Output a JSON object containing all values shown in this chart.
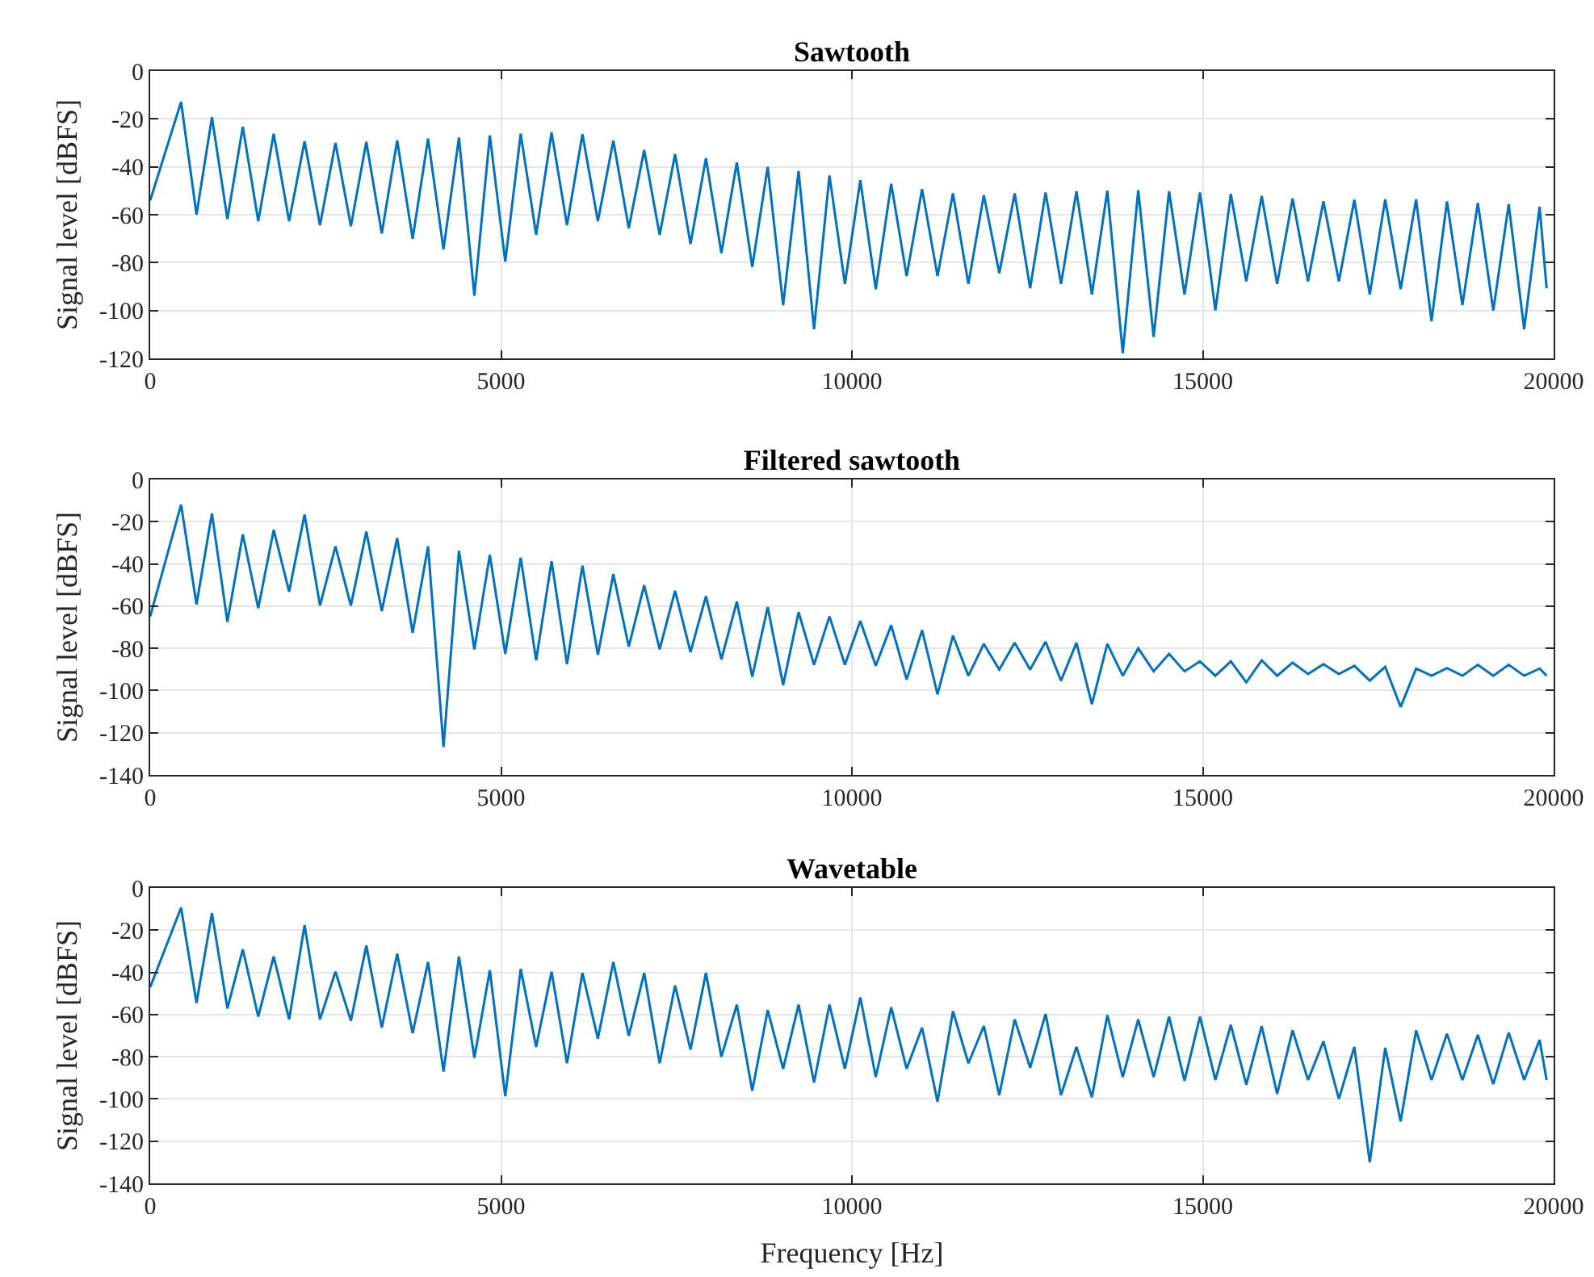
{
  "chart_data": [
    {
      "type": "line",
      "title": "Sawtooth",
      "ylabel": "Signal level [dBFS]",
      "xlim": [
        0,
        20000
      ],
      "xticks": [
        0,
        5000,
        10000,
        15000,
        20000
      ],
      "ylim": [
        -120,
        0
      ],
      "yticks": [
        -120,
        -100,
        -80,
        -60,
        -40,
        -20,
        0
      ],
      "grid": true,
      "x": [
        0,
        440,
        660,
        880,
        1100,
        1320,
        1540,
        1760,
        1980,
        2200,
        2420,
        2640,
        2860,
        3080,
        3300,
        3520,
        3740,
        3960,
        4180,
        4400,
        4620,
        4840,
        5060,
        5280,
        5500,
        5720,
        5940,
        6160,
        6380,
        6600,
        6820,
        7040,
        7260,
        7480,
        7700,
        7920,
        8140,
        8360,
        8580,
        8800,
        9020,
        9240,
        9460,
        9680,
        9900,
        10120,
        10340,
        10560,
        10780,
        11000,
        11220,
        11440,
        11660,
        11880,
        12100,
        12320,
        12540,
        12760,
        12980,
        13200,
        13420,
        13640,
        13860,
        14080,
        14300,
        14520,
        14740,
        14960,
        15180,
        15400,
        15620,
        15840,
        16060,
        16280,
        16500,
        16720,
        16940,
        17160,
        17380,
        17600,
        17820,
        18040,
        18260,
        18480,
        18700,
        18920,
        19140,
        19360,
        19580,
        19800,
        19900
      ],
      "series": [
        {
          "color": "#0072bd",
          "values": [
            -54,
            -12.9,
            -60,
            -19.3,
            -61.8,
            -23.3,
            -62.7,
            -26.2,
            -62.7,
            -29.3,
            -64.4,
            -30,
            -64.8,
            -29.6,
            -67.8,
            -29,
            -70,
            -28.2,
            -74.4,
            -27.8,
            -93.8,
            -26.9,
            -79.6,
            -26.2,
            -68.4,
            -25.6,
            -64.4,
            -26.4,
            -62.7,
            -29.1,
            -65.6,
            -33,
            -68.4,
            -34.7,
            -72.2,
            -36.4,
            -76,
            -38.2,
            -81.8,
            -40,
            -97.8,
            -41.8,
            -107.8,
            -43.6,
            -88.9,
            -45.6,
            -91.1,
            -47.1,
            -85.6,
            -49.3,
            -85.6,
            -51.1,
            -88.9,
            -51.8,
            -84.4,
            -51.1,
            -90.7,
            -50.7,
            -88.9,
            -50.2,
            -93.3,
            -50,
            -117.8,
            -49.8,
            -111,
            -50.2,
            -93.3,
            -50.7,
            -100,
            -51.3,
            -87.8,
            -52.2,
            -88.9,
            -53.3,
            -87.8,
            -54.4,
            -87.8,
            -53.8,
            -93.3,
            -53.6,
            -91.1,
            -53.6,
            -104.4,
            -54.4,
            -97.8,
            -55.1,
            -100,
            -55.6,
            -107.8,
            -56.7,
            -90.7
          ]
        }
      ]
    },
    {
      "type": "line",
      "title": "Filtered sawtooth",
      "ylabel": "Signal level [dBFS]",
      "xlim": [
        0,
        20000
      ],
      "xticks": [
        0,
        5000,
        10000,
        15000,
        20000
      ],
      "ylim": [
        -140,
        0
      ],
      "yticks": [
        -140,
        -120,
        -100,
        -80,
        -60,
        -40,
        -20,
        0
      ],
      "grid": true,
      "x": [
        0,
        440,
        660,
        880,
        1100,
        1320,
        1540,
        1760,
        1980,
        2200,
        2420,
        2640,
        2860,
        3080,
        3300,
        3520,
        3740,
        3960,
        4180,
        4400,
        4620,
        4840,
        5060,
        5280,
        5500,
        5720,
        5940,
        6160,
        6380,
        6600,
        6820,
        7040,
        7260,
        7480,
        7700,
        7920,
        8140,
        8360,
        8580,
        8800,
        9020,
        9240,
        9460,
        9680,
        9900,
        10120,
        10340,
        10560,
        10780,
        11000,
        11220,
        11440,
        11660,
        11880,
        12100,
        12320,
        12540,
        12760,
        12980,
        13200,
        13420,
        13640,
        13860,
        14080,
        14300,
        14520,
        14740,
        14960,
        15180,
        15400,
        15620,
        15840,
        16060,
        16280,
        16500,
        16720,
        16940,
        17160,
        17380,
        17600,
        17820,
        18040,
        18260,
        18480,
        18700,
        18920,
        19140,
        19360,
        19580,
        19800,
        19900
      ],
      "series": [
        {
          "color": "#0072bd",
          "values": [
            -64.9,
            -11.9,
            -59.2,
            -16.1,
            -67.5,
            -26,
            -61,
            -23.9,
            -53.2,
            -16.6,
            -59.7,
            -31.7,
            -59.7,
            -24.7,
            -62.3,
            -27.8,
            -72.7,
            -31.7,
            -126.8,
            -33.8,
            -80.5,
            -35.8,
            -82.6,
            -37.1,
            -85.7,
            -38.7,
            -87.5,
            -40.8,
            -83.1,
            -44.9,
            -79.2,
            -50.1,
            -80.5,
            -52.7,
            -81.8,
            -55.3,
            -85.2,
            -57.9,
            -93.5,
            -60.5,
            -97.4,
            -62.9,
            -87.8,
            -64.9,
            -87.8,
            -67,
            -88.3,
            -69.1,
            -94.8,
            -71.4,
            -101.8,
            -74,
            -93,
            -77.9,
            -90.1,
            -77.4,
            -90.1,
            -76.9,
            -95.3,
            -77.4,
            -106.5,
            -77.9,
            -93,
            -80,
            -90.9,
            -82.6,
            -90.9,
            -86.2,
            -93,
            -86.2,
            -96.1,
            -85.7,
            -93,
            -86.8,
            -92.2,
            -87.5,
            -92.2,
            -88.3,
            -95.3,
            -88.8,
            -107.8,
            -89.6,
            -93,
            -89.4,
            -93,
            -87.8,
            -93,
            -87.8,
            -93,
            -89.6,
            -93
          ]
        }
      ]
    },
    {
      "type": "line",
      "title": "Wavetable",
      "xlabel": "Frequency [Hz]",
      "ylabel": "Signal level [dBFS]",
      "xlim": [
        0,
        20000
      ],
      "xticks": [
        0,
        5000,
        10000,
        15000,
        20000
      ],
      "ylim": [
        -140,
        0
      ],
      "yticks": [
        -140,
        -120,
        -100,
        -80,
        -60,
        -40,
        -20,
        0
      ],
      "grid": true,
      "x": [
        0,
        440,
        660,
        880,
        1100,
        1320,
        1540,
        1760,
        1980,
        2200,
        2420,
        2640,
        2860,
        3080,
        3300,
        3520,
        3740,
        3960,
        4180,
        4400,
        4620,
        4840,
        5060,
        5280,
        5500,
        5720,
        5940,
        6160,
        6380,
        6600,
        6820,
        7040,
        7260,
        7480,
        7700,
        7920,
        8140,
        8360,
        8580,
        8800,
        9020,
        9240,
        9460,
        9680,
        9900,
        10120,
        10340,
        10560,
        10780,
        11000,
        11220,
        11440,
        11660,
        11880,
        12100,
        12320,
        12540,
        12760,
        12980,
        13200,
        13420,
        13640,
        13860,
        14080,
        14300,
        14520,
        14740,
        14960,
        15180,
        15400,
        15620,
        15840,
        16060,
        16280,
        16500,
        16720,
        16940,
        17160,
        17380,
        17600,
        17820,
        18040,
        18260,
        18480,
        18700,
        18920,
        19140,
        19360,
        19580,
        19800,
        19900
      ],
      "series": [
        {
          "color": "#0072bd",
          "values": [
            -47,
            -9.4,
            -54.5,
            -11.9,
            -57.1,
            -29.1,
            -61,
            -32.5,
            -62.3,
            -17.7,
            -62.3,
            -39.7,
            -62.9,
            -27.3,
            -66.2,
            -31.2,
            -68.8,
            -35.1,
            -87,
            -32.5,
            -80.5,
            -39,
            -98.7,
            -38.4,
            -75.3,
            -39.7,
            -83.1,
            -40.3,
            -71.4,
            -35.1,
            -70.1,
            -40.3,
            -83.1,
            -46.2,
            -76.6,
            -40.3,
            -80,
            -55.3,
            -96.1,
            -57.9,
            -85.7,
            -55.3,
            -92.2,
            -55.3,
            -85.7,
            -51.9,
            -89.6,
            -56.6,
            -85.7,
            -66.2,
            -101.3,
            -58.4,
            -83.1,
            -65.4,
            -98.2,
            -62.3,
            -85.2,
            -59.7,
            -98.2,
            -75.3,
            -99.2,
            -60.3,
            -89.6,
            -62.3,
            -89.6,
            -61,
            -91.4,
            -61,
            -91,
            -64.9,
            -93.2,
            -65.5,
            -97.6,
            -67.5,
            -91,
            -72.7,
            -100,
            -75.3,
            -130,
            -75.8,
            -110.6,
            -67.5,
            -91,
            -69.1,
            -91,
            -69.6,
            -93,
            -68.6,
            -91,
            -72,
            -91
          ]
        }
      ]
    }
  ]
}
